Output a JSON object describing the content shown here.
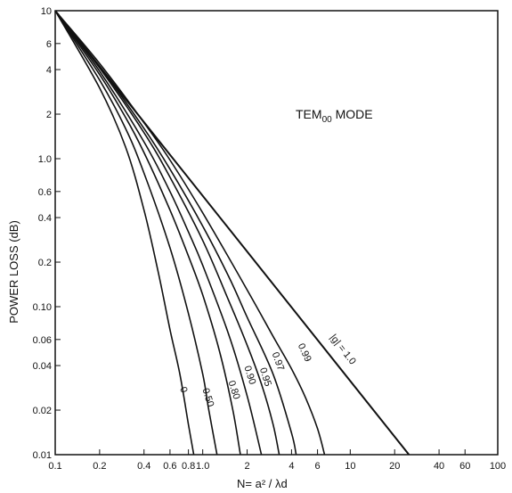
{
  "chart_data": {
    "type": "line",
    "xlabel": "N= a² / λd",
    "ylabel": "POWER LOSS (dB)",
    "annotation": {
      "text": "TEM",
      "subscript": "00",
      "suffix": " MODE"
    },
    "xscale": "log",
    "yscale": "log",
    "xlim": [
      0.1,
      100
    ],
    "ylim": [
      0.01,
      10
    ],
    "grid": false,
    "x_ticks": [
      {
        "value": 0.1,
        "label": "0.1"
      },
      {
        "value": 0.2,
        "label": "0.2"
      },
      {
        "value": 0.4,
        "label": "0.4"
      },
      {
        "value": 0.6,
        "label": "0.6"
      },
      {
        "value": 0.8,
        "label": "0.8"
      },
      {
        "value": 1.0,
        "label": "1.0"
      },
      {
        "value": 2,
        "label": "2"
      },
      {
        "value": 4,
        "label": "4"
      },
      {
        "value": 6,
        "label": "6"
      },
      {
        "value": 10,
        "label": "10"
      },
      {
        "value": 20,
        "label": "20"
      },
      {
        "value": 40,
        "label": "40"
      },
      {
        "value": 60,
        "label": "60"
      },
      {
        "value": 100,
        "label": "100"
      }
    ],
    "y_ticks": [
      {
        "value": 10,
        "label": "10"
      },
      {
        "value": 6,
        "label": "6"
      },
      {
        "value": 4,
        "label": "4"
      },
      {
        "value": 2,
        "label": "2"
      },
      {
        "value": 1.0,
        "label": "1.0"
      },
      {
        "value": 0.6,
        "label": "0.6"
      },
      {
        "value": 0.4,
        "label": "0.4"
      },
      {
        "value": 0.2,
        "label": "0.2"
      },
      {
        "value": 0.1,
        "label": "0.10"
      },
      {
        "value": 0.06,
        "label": "0.06"
      },
      {
        "value": 0.04,
        "label": "0.04"
      },
      {
        "value": 0.02,
        "label": "0.02"
      },
      {
        "value": 0.01,
        "label": "0.01"
      }
    ],
    "series": [
      {
        "name": "0",
        "x": [
          0.1,
          0.2,
          0.3,
          0.4,
          0.5,
          0.6,
          0.7,
          0.8,
          0.87
        ],
        "y": [
          10,
          3.0,
          1.2,
          0.45,
          0.17,
          0.07,
          0.035,
          0.016,
          0.01
        ]
      },
      {
        "name": "0.50",
        "x": [
          0.1,
          0.2,
          0.3,
          0.4,
          0.6,
          0.8,
          1.0,
          1.1,
          1.25
        ],
        "y": [
          10,
          3.4,
          1.6,
          0.8,
          0.25,
          0.09,
          0.035,
          0.02,
          0.01
        ]
      },
      {
        "name": "0.80",
        "x": [
          0.1,
          0.2,
          0.3,
          0.4,
          0.6,
          0.8,
          1.0,
          1.3,
          1.6,
          1.8
        ],
        "y": [
          10,
          3.7,
          1.9,
          1.1,
          0.45,
          0.22,
          0.12,
          0.05,
          0.02,
          0.01
        ]
      },
      {
        "name": "0.90",
        "x": [
          0.1,
          0.2,
          0.4,
          0.6,
          0.8,
          1.0,
          1.5,
          2.0,
          2.5
        ],
        "y": [
          10,
          3.9,
          1.3,
          0.6,
          0.32,
          0.19,
          0.065,
          0.025,
          0.01
        ]
      },
      {
        "name": "0.95",
        "x": [
          0.1,
          0.2,
          0.4,
          0.6,
          1.0,
          1.5,
          2.0,
          2.5,
          3.0,
          3.3
        ],
        "y": [
          10,
          4.1,
          1.5,
          0.75,
          0.28,
          0.11,
          0.055,
          0.03,
          0.016,
          0.01
        ]
      },
      {
        "name": "0.97",
        "x": [
          0.1,
          0.2,
          0.4,
          0.6,
          1.0,
          1.5,
          2.0,
          3.0,
          4.0,
          4.3
        ],
        "y": [
          10,
          4.2,
          1.6,
          0.85,
          0.35,
          0.16,
          0.085,
          0.035,
          0.014,
          0.01
        ]
      },
      {
        "name": "0.99",
        "x": [
          0.1,
          0.2,
          0.4,
          0.6,
          1.0,
          2.0,
          3.0,
          4.0,
          5.0,
          6.0,
          6.7
        ],
        "y": [
          10,
          4.4,
          1.75,
          0.98,
          0.43,
          0.13,
          0.063,
          0.038,
          0.024,
          0.015,
          0.01
        ]
      },
      {
        "name": "|g| = 1.0",
        "x": [
          0.1,
          25
        ],
        "y": [
          10,
          0.01
        ]
      }
    ],
    "labels": [
      {
        "series": "0",
        "text": "0",
        "x": 0.71,
        "y": 0.027,
        "angle": -70
      },
      {
        "series": "0.50",
        "text": "0.50",
        "x": 1.04,
        "y": 0.024,
        "angle": -72
      },
      {
        "series": "0.80",
        "text": "0.80",
        "x": 1.56,
        "y": 0.027,
        "angle": -72
      },
      {
        "series": "0.90",
        "x": 2.0,
        "y": 0.034,
        "text": "0.90",
        "angle": -72
      },
      {
        "series": "0.95",
        "x": 2.55,
        "y": 0.033,
        "text": "0.95",
        "angle": -72
      },
      {
        "series": "0.97",
        "x": 3.1,
        "y": 0.042,
        "text": "0.97",
        "angle": -70
      },
      {
        "series": "0.99",
        "x": 4.7,
        "y": 0.048,
        "text": "0.99",
        "angle": -65
      },
      {
        "series": "|g| = 1.0",
        "x": 8.6,
        "y": 0.05,
        "text": "|g| = 1.0",
        "angle": -52
      }
    ]
  }
}
